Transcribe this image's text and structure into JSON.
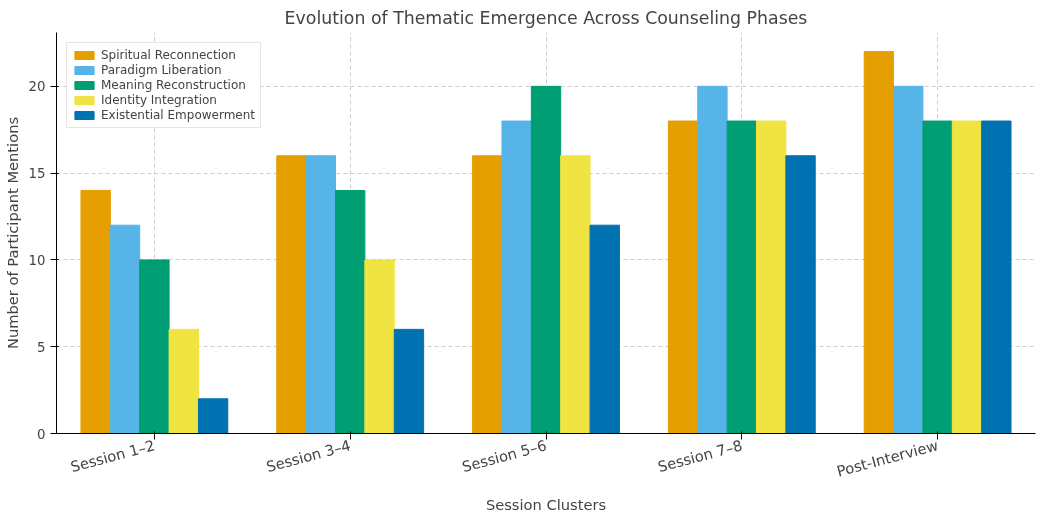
{
  "chart_data": {
    "type": "bar",
    "title": "Evolution of Thematic Emergence Across Counseling Phases",
    "xlabel": "Session Clusters",
    "ylabel": "Number of Participant Mentions",
    "categories": [
      "Session 1–2",
      "Session 3–4",
      "Session 5–6",
      "Session 7–8",
      "Post-Interview"
    ],
    "series": [
      {
        "name": "Spiritual Reconnection",
        "color": "#e69f00",
        "values": [
          14,
          16,
          16,
          18,
          22
        ]
      },
      {
        "name": "Paradigm Liberation",
        "color": "#56b4e9",
        "values": [
          12,
          16,
          18,
          20,
          20
        ]
      },
      {
        "name": "Meaning Reconstruction",
        "color": "#009e73",
        "values": [
          10,
          14,
          20,
          18,
          18
        ]
      },
      {
        "name": "Identity Integration",
        "color": "#f0e442",
        "values": [
          6,
          10,
          16,
          18,
          18
        ]
      },
      {
        "name": "Existential Empowerment",
        "color": "#0072b2",
        "values": [
          2,
          6,
          12,
          16,
          18
        ]
      }
    ],
    "ylim": [
      0,
      23.1
    ],
    "yticks": [
      0,
      5,
      10,
      15,
      20
    ],
    "grid": true,
    "legend": "top left"
  }
}
